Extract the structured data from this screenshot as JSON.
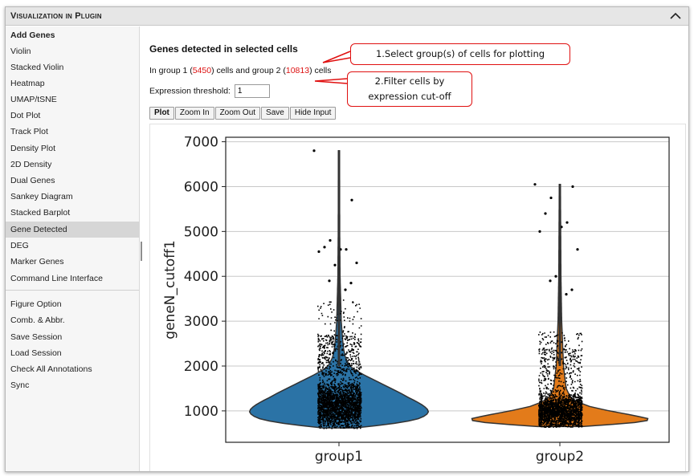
{
  "window": {
    "title": "Visualization in Plugin"
  },
  "sidebar": {
    "items": [
      {
        "label": "Add Genes",
        "bold": true
      },
      {
        "label": "Violin"
      },
      {
        "label": "Stacked Violin"
      },
      {
        "label": "Heatmap"
      },
      {
        "label": "UMAP/tSNE"
      },
      {
        "label": "Dot Plot"
      },
      {
        "label": "Track Plot"
      },
      {
        "label": "Density Plot"
      },
      {
        "label": "2D Density"
      },
      {
        "label": "Dual Genes"
      },
      {
        "label": "Sankey Diagram"
      },
      {
        "label": "Stacked Barplot"
      },
      {
        "label": "Gene Detected",
        "active": true
      },
      {
        "label": "DEG"
      },
      {
        "label": "Marker Genes"
      },
      {
        "label": "Command Line Interface"
      }
    ],
    "items2": [
      {
        "label": "Figure Option"
      },
      {
        "label": "Comb. & Abbr."
      },
      {
        "label": "Save Session"
      },
      {
        "label": "Load Session"
      },
      {
        "label": "Check All Annotations"
      },
      {
        "label": "Sync"
      }
    ]
  },
  "main": {
    "heading": "Genes detected in selected cells",
    "group_text": {
      "prefix": "In group 1 (",
      "group1_count": "5450",
      "middle": ") cells and group 2 (",
      "group2_count": "10813",
      "suffix": ") cells"
    },
    "threshold": {
      "label": "Expression threshold:",
      "value": "1"
    },
    "buttons": {
      "plot": "Plot",
      "zoom_in": "Zoom In",
      "zoom_out": "Zoom Out",
      "save": "Save",
      "hide_input": "Hide Input"
    }
  },
  "callouts": {
    "first": "1.Select group(s) of cells for plotting",
    "second_line1": "2.Filter cells by",
    "second_line2": "expression cut-off"
  },
  "colors": {
    "group1": "#2b73a6",
    "group2": "#e37b1a",
    "callout_border": "#e01010",
    "highlight_text": "#dd1111"
  },
  "chart_data": {
    "type": "violin",
    "categories": [
      "group1",
      "group2"
    ],
    "ylabel": "geneN_cutoff1",
    "ylim": [
      300,
      7100
    ],
    "yticks": [
      1000,
      2000,
      3000,
      4000,
      5000,
      6000,
      7000
    ],
    "grid": true,
    "series": [
      {
        "name": "group1",
        "color": "#2b73a6",
        "min": 620,
        "max": 6800,
        "profile": [
          [
            620,
            0.18
          ],
          [
            700,
            0.55
          ],
          [
            800,
            0.85
          ],
          [
            900,
            0.97
          ],
          [
            1000,
            1.0
          ],
          [
            1100,
            0.95
          ],
          [
            1200,
            0.87
          ],
          [
            1300,
            0.77
          ],
          [
            1400,
            0.68
          ],
          [
            1500,
            0.58
          ],
          [
            1600,
            0.48
          ],
          [
            1700,
            0.38
          ],
          [
            1800,
            0.28
          ],
          [
            1900,
            0.19
          ],
          [
            2000,
            0.12
          ],
          [
            2200,
            0.07
          ],
          [
            2400,
            0.05
          ],
          [
            2600,
            0.04
          ],
          [
            3000,
            0.025
          ],
          [
            4000,
            0.012
          ],
          [
            5000,
            0.008
          ],
          [
            6800,
            0.006
          ]
        ],
        "outliers": [
          6800,
          5700,
          4800,
          4650,
          4600,
          4600,
          4550,
          4300,
          4250,
          3900,
          3850,
          3700
        ]
      },
      {
        "name": "group2",
        "color": "#e37b1a",
        "min": 650,
        "max": 6050,
        "profile": [
          [
            650,
            0.25
          ],
          [
            700,
            0.6
          ],
          [
            760,
            0.95
          ],
          [
            820,
            1.0
          ],
          [
            900,
            0.82
          ],
          [
            1000,
            0.55
          ],
          [
            1100,
            0.33
          ],
          [
            1200,
            0.2
          ],
          [
            1300,
            0.12
          ],
          [
            1500,
            0.07
          ],
          [
            2000,
            0.04
          ],
          [
            3000,
            0.02
          ],
          [
            4000,
            0.012
          ],
          [
            6050,
            0.006
          ]
        ],
        "outliers": [
          6050,
          6000,
          5750,
          5400,
          5200,
          5100,
          5000,
          4600,
          4000,
          3900,
          3700,
          3600
        ]
      }
    ]
  }
}
